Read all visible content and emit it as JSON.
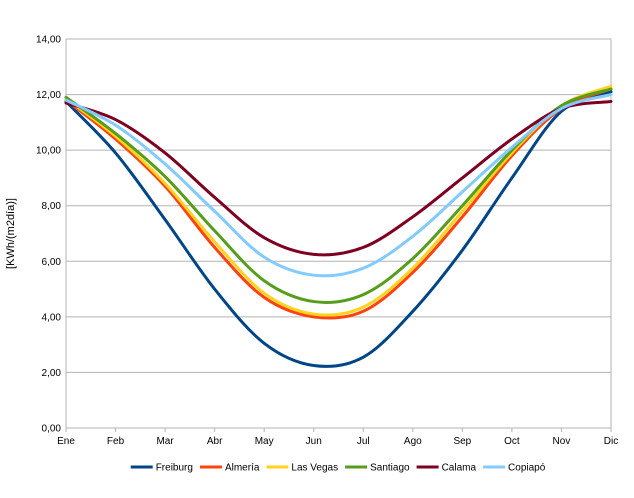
{
  "chart_data": {
    "type": "line",
    "title": "",
    "xlabel": "",
    "ylabel": "[KWh/(m2día)]",
    "categories": [
      "Ene",
      "Feb",
      "Mar",
      "Abr",
      "May",
      "Jun",
      "Jul",
      "Ago",
      "Sep",
      "Oct",
      "Nov",
      "Dic"
    ],
    "ylim": [
      0,
      14
    ],
    "yticks": [
      "0,00",
      "2,00",
      "4,00",
      "6,00",
      "8,00",
      "10,00",
      "12,00",
      "14,00"
    ],
    "grid": true,
    "legend_position": "bottom",
    "series": [
      {
        "name": "Freiburg",
        "color": "#004586",
        "values": [
          11.75,
          9.9,
          7.5,
          5.0,
          3.05,
          2.25,
          2.55,
          4.2,
          6.4,
          9.0,
          11.4,
          12.1
        ]
      },
      {
        "name": "Almería",
        "color": "#ff420e",
        "values": [
          11.8,
          10.4,
          8.7,
          6.5,
          4.7,
          4.0,
          4.2,
          5.6,
          7.6,
          9.8,
          11.5,
          12.2
        ]
      },
      {
        "name": "Las Vegas",
        "color": "#ffd320",
        "values": [
          11.85,
          10.5,
          8.8,
          6.7,
          4.85,
          4.1,
          4.35,
          5.75,
          7.8,
          9.9,
          11.6,
          12.3
        ]
      },
      {
        "name": "Santiago",
        "color": "#579d1c",
        "values": [
          11.9,
          10.6,
          9.05,
          7.1,
          5.3,
          4.55,
          4.8,
          6.1,
          8.0,
          10.0,
          11.6,
          12.2
        ]
      },
      {
        "name": "Calama",
        "color": "#7e0021",
        "values": [
          11.7,
          11.1,
          9.9,
          8.3,
          6.85,
          6.25,
          6.5,
          7.6,
          9.0,
          10.4,
          11.5,
          11.75
        ]
      },
      {
        "name": "Copiapó",
        "color": "#83caff",
        "values": [
          11.8,
          10.9,
          9.5,
          7.8,
          6.15,
          5.5,
          5.75,
          6.9,
          8.5,
          10.1,
          11.5,
          12.0
        ]
      }
    ]
  }
}
